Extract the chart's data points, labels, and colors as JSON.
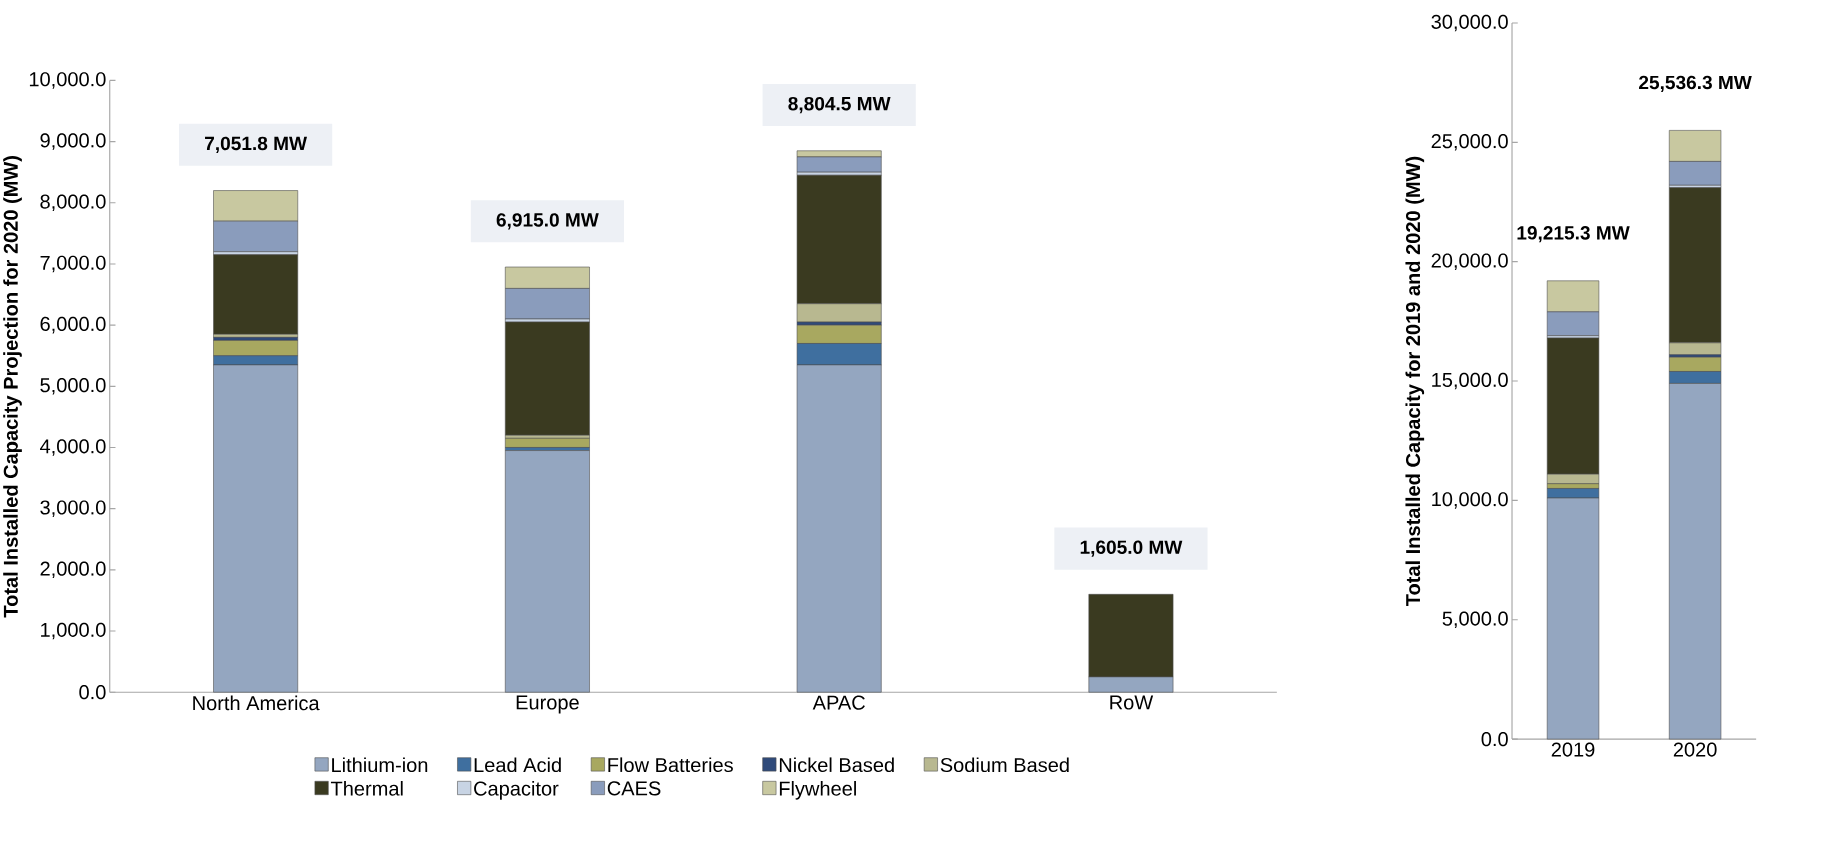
{
  "chart_data": [
    {
      "type": "bar",
      "stacked": true,
      "ylabel": "Total Installed Capacity Projection for 2020 (MW)",
      "categories": [
        "North America",
        "Europe",
        "APAC",
        "RoW"
      ],
      "ylim": [
        0,
        10000
      ],
      "yticks": [
        {
          "value": 0,
          "label": "0.0"
        },
        {
          "value": 1000,
          "label": "1,000.0"
        },
        {
          "value": 2000,
          "label": "2,000.0"
        },
        {
          "value": 3000,
          "label": "3,000.0"
        },
        {
          "value": 4000,
          "label": "4,000.0"
        },
        {
          "value": 5000,
          "label": "5,000.0"
        },
        {
          "value": 6000,
          "label": "6,000.0"
        },
        {
          "value": 7000,
          "label": "7,000.0"
        },
        {
          "value": 8000,
          "label": "8,000.0"
        },
        {
          "value": 9000,
          "label": "9,000.0"
        },
        {
          "value": 10000,
          "label": "10,000.0"
        }
      ],
      "legend": "bottom",
      "grid": false,
      "series": [
        {
          "name": "Lithium-ion",
          "color": "#94a6c0",
          "values": [
            5350,
            3950,
            5350,
            250
          ]
        },
        {
          "name": "Lead Acid",
          "color": "#3f6f9f",
          "values": [
            150,
            50,
            350,
            0
          ]
        },
        {
          "name": "Flow Batteries",
          "color": "#a8a860",
          "values": [
            250,
            150,
            300,
            0
          ]
        },
        {
          "name": "Nickel Based",
          "color": "#2f4a7a",
          "values": [
            50,
            0,
            50,
            0
          ]
        },
        {
          "name": "Sodium Based",
          "color": "#b8b890",
          "values": [
            50,
            50,
            300,
            0
          ]
        },
        {
          "name": "Thermal",
          "color": "#3a3a20",
          "values": [
            1300,
            1850,
            2100,
            1350
          ]
        },
        {
          "name": "Capacitor",
          "color": "#c8d4e4",
          "values": [
            50,
            50,
            50,
            0
          ]
        },
        {
          "name": "CAES",
          "color": "#8a9cbc",
          "values": [
            500,
            500,
            250,
            0
          ]
        },
        {
          "name": "Flywheel",
          "color": "#c8c8a0",
          "values": [
            500,
            350,
            100,
            0
          ]
        }
      ],
      "annotations": [
        "7,051.8 MW",
        "6,915.0 MW",
        "8,804.5 MW",
        "1,605.0 MW"
      ]
    },
    {
      "type": "bar",
      "stacked": true,
      "ylabel": "Total Installed Capacity for 2019 and 2020 (MW)",
      "categories": [
        "2019",
        "2020"
      ],
      "ylim": [
        0,
        30000
      ],
      "yticks": [
        {
          "value": 0,
          "label": "0.0"
        },
        {
          "value": 5000,
          "label": "5,000.0"
        },
        {
          "value": 10000,
          "label": "10,000.0"
        },
        {
          "value": 15000,
          "label": "15,000.0"
        },
        {
          "value": 20000,
          "label": "20,000.0"
        },
        {
          "value": 25000,
          "label": "25,000.0"
        },
        {
          "value": 30000,
          "label": "30,000.0"
        }
      ],
      "grid": false,
      "series": [
        {
          "color": "#94a6c0",
          "values": [
            10100,
            14900
          ]
        },
        {
          "color": "#3f6f9f",
          "values": [
            400,
            500
          ]
        },
        {
          "color": "#a8a860",
          "values": [
            200,
            600
          ]
        },
        {
          "color": "#2f4a7a",
          "values": [
            0,
            100
          ]
        },
        {
          "color": "#b8b890",
          "values": [
            400,
            500
          ]
        },
        {
          "color": "#3a3a20",
          "values": [
            5700,
            6500
          ]
        },
        {
          "color": "#c8d4e4",
          "values": [
            100,
            100
          ]
        },
        {
          "color": "#8a9cbc",
          "values": [
            1000,
            1000
          ]
        },
        {
          "color": "#c8c8a0",
          "values": [
            1300,
            1300
          ]
        }
      ],
      "annotations": [
        "19,215.3 MW",
        "25,536.3 MW"
      ]
    }
  ]
}
